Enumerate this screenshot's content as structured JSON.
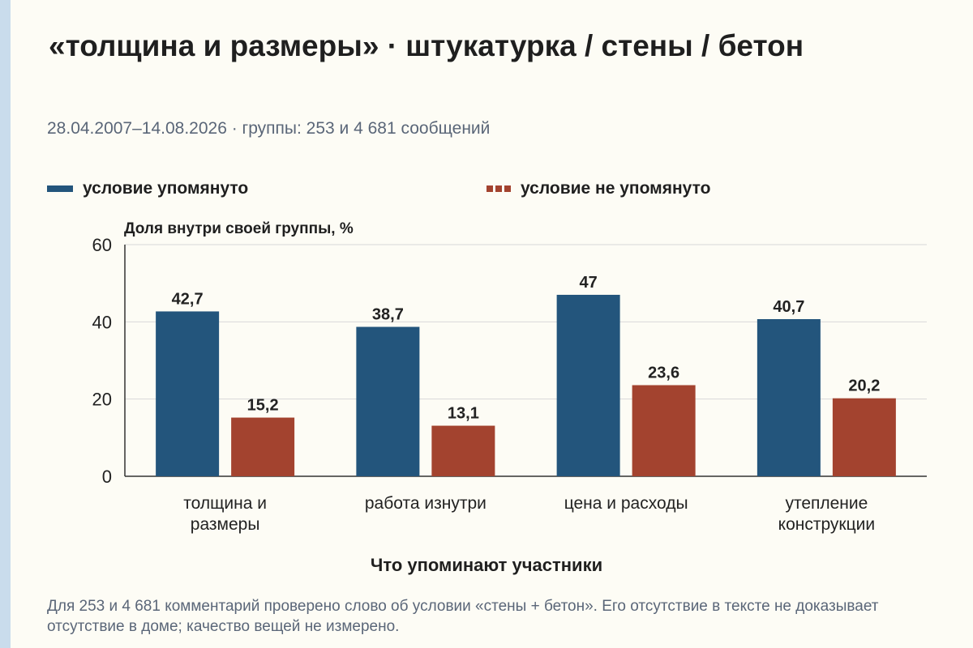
{
  "title": "«толщина и размеры» · штукатурка / стены / бетон",
  "subtitle": "28.04.2007–14.08.2026 · группы: 253 и 4 681 сообщений",
  "footnote": "Для 253 и 4 681 комментарий проверено слово об условии «стены + бетон». Его отсутствие в тексте не доказывает отсутствие в доме; качество вещей не измерено.",
  "chart_data": {
    "type": "bar",
    "title": "«толщина и размеры» · штукатурка / стены / бетон",
    "ylabel": "Доля внутри своей группы, %",
    "xlabel": "Что упоминают участники",
    "ylim": [
      0,
      60
    ],
    "yticks": [
      "0",
      "20",
      "40",
      "60"
    ],
    "grid": true,
    "legend_position": "top",
    "categories": [
      [
        "толщина и",
        "размеры"
      ],
      [
        "работа изнутри"
      ],
      [
        "цена и расходы"
      ],
      [
        "утепление",
        "конструкции"
      ]
    ],
    "series": [
      {
        "name": "условие упомянуто",
        "color": "#23557c",
        "values": [
          42.7,
          38.7,
          47,
          40.7
        ],
        "labels": [
          "42,7",
          "38,7",
          "47",
          "40,7"
        ]
      },
      {
        "name": "условие не упомянуто",
        "color": "#a3432f",
        "values": [
          15.2,
          13.1,
          23.6,
          20.2
        ],
        "labels": [
          "15,2",
          "13,1",
          "23,6",
          "20,2"
        ]
      }
    ]
  }
}
